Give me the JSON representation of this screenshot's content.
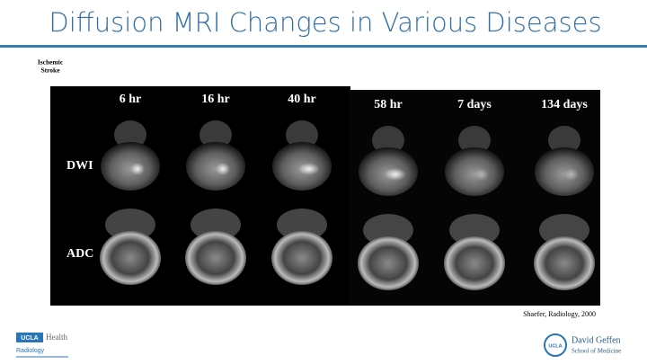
{
  "header": {
    "title": "Diffusion MRI Changes in Various Diseases"
  },
  "label": {
    "line1": "Ischemic",
    "line2": "Stroke"
  },
  "figure": {
    "timepoints": [
      "6 hr",
      "16 hr",
      "40 hr",
      "58 hr",
      "7 days",
      "134 days"
    ],
    "rows": [
      "DWI",
      "ADC"
    ]
  },
  "citation": "Shaefer, Radiology, 2000",
  "logos": {
    "left": {
      "badge": "UCLA",
      "name": "Health",
      "department": "Radiology"
    },
    "right": {
      "badge": "UCLA",
      "name": "David Geffen",
      "school": "School of Medicine"
    }
  }
}
